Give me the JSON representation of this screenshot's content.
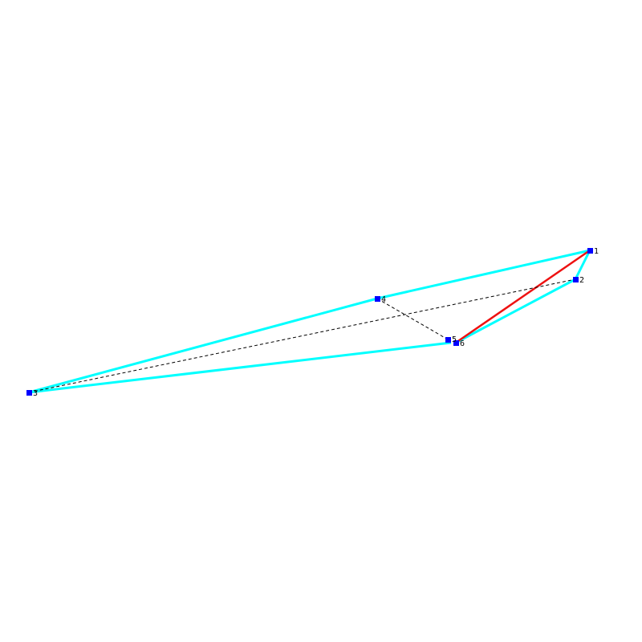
{
  "nodes": [
    {
      "label": "1"
    },
    {
      "label": "2"
    },
    {
      "label": "3"
    },
    {
      "label": "4"
    },
    {
      "label": "5"
    },
    {
      "label": "6"
    }
  ]
}
